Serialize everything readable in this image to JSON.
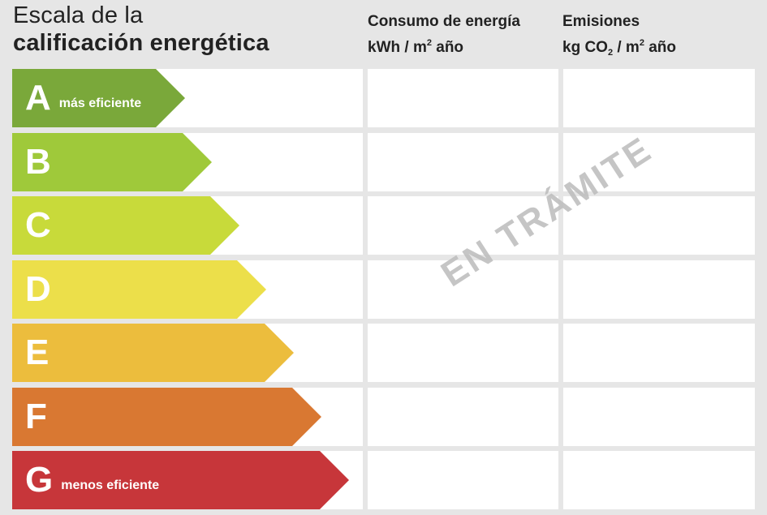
{
  "title": {
    "line1": "Escala de la",
    "line2": "calificación energética"
  },
  "columns": {
    "energy": {
      "line1": "Consumo de energía",
      "unit_pre": "kWh / m",
      "unit_sup": "2",
      "unit_post": " año"
    },
    "emissions": {
      "line1": "Emisiones",
      "unit_pre": "kg CO",
      "unit_sub": "2",
      "unit_mid": " / m",
      "unit_sup": "2",
      "unit_post": " año"
    }
  },
  "ratings": [
    {
      "letter": "A",
      "note": "más eficiente",
      "color": "#7aa83a"
    },
    {
      "letter": "B",
      "note": "",
      "color": "#9fc93a"
    },
    {
      "letter": "C",
      "note": "",
      "color": "#c8da3a"
    },
    {
      "letter": "D",
      "note": "",
      "color": "#ecdf4a"
    },
    {
      "letter": "E",
      "note": "",
      "color": "#ecbd3d"
    },
    {
      "letter": "F",
      "note": "",
      "color": "#d97832"
    },
    {
      "letter": "G",
      "note": "menos eficiente",
      "color": "#c7363a"
    }
  ],
  "watermark": "EN TRÁMITE"
}
